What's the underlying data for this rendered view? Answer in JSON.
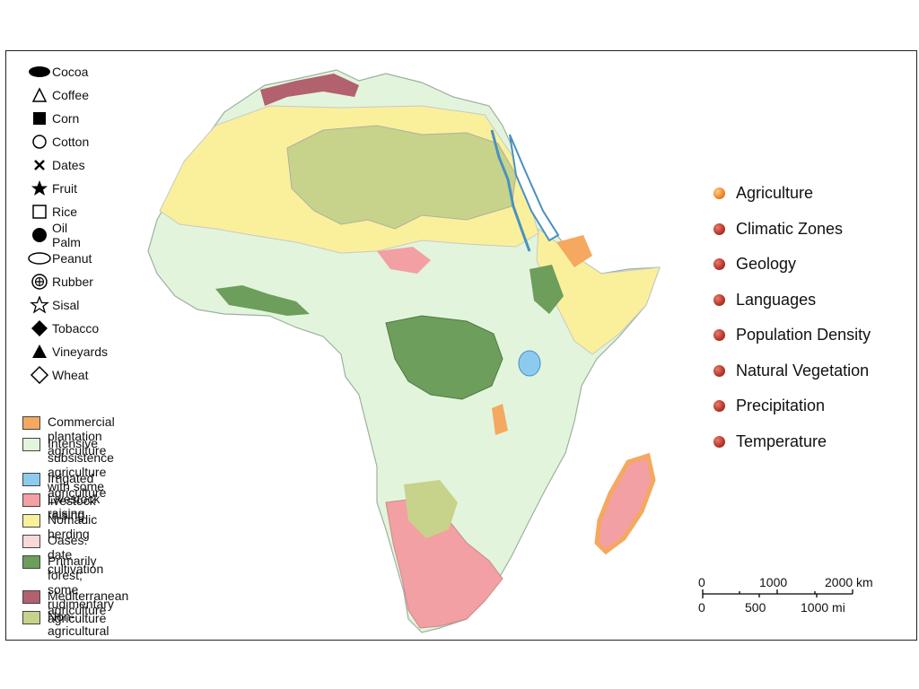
{
  "symbol_legend": [
    {
      "label": "Cocoa",
      "icon": "cocoa-icon"
    },
    {
      "label": "Coffee",
      "icon": "coffee-icon"
    },
    {
      "label": "Corn",
      "icon": "corn-icon"
    },
    {
      "label": "Cotton",
      "icon": "cotton-icon"
    },
    {
      "label": "Dates",
      "icon": "dates-icon"
    },
    {
      "label": "Fruit",
      "icon": "fruit-icon"
    },
    {
      "label": "Rice",
      "icon": "rice-icon"
    },
    {
      "label": "Oil Palm",
      "icon": "oil-palm-icon"
    },
    {
      "label": "Peanut",
      "icon": "peanut-icon"
    },
    {
      "label": "Rubber",
      "icon": "rubber-icon"
    },
    {
      "label": "Sisal",
      "icon": "sisal-icon"
    },
    {
      "label": "Tobacco",
      "icon": "tobacco-icon"
    },
    {
      "label": "Vineyards",
      "icon": "vineyards-icon"
    },
    {
      "label": "Wheat",
      "icon": "wheat-icon"
    }
  ],
  "land_use_legend": [
    {
      "label": "Commercial plantation agriculture",
      "color": "#f5a860"
    },
    {
      "label": "Intensive subsistence agriculture\nwith some livestock raising",
      "color": "#e2f5dc"
    },
    {
      "label": "Irrigated agriculture",
      "color": "#8ccbef"
    },
    {
      "label": "Livestock raising",
      "color": "#f2a0a3"
    },
    {
      "label": "Nomadic herding",
      "color": "#faf09c"
    },
    {
      "label": "Oases: date cultivation",
      "color": "#fbd8d8"
    },
    {
      "label": "Primarily forest; some\nrudimentary agriculture",
      "color": "#6d9e5c"
    },
    {
      "label": "Mediterranean agriculture",
      "color": "#b2616e"
    },
    {
      "label": "Non-agricultural",
      "color": "#c7d38a"
    }
  ],
  "nav_menu": [
    {
      "label": "Agriculture",
      "active": true
    },
    {
      "label": "Climatic Zones",
      "active": false
    },
    {
      "label": "Geology",
      "active": false
    },
    {
      "label": "Languages",
      "active": false
    },
    {
      "label": "Population Density",
      "active": false
    },
    {
      "label": "Natural Vegetation",
      "active": false
    },
    {
      "label": "Precipitation",
      "active": false
    },
    {
      "label": "Temperature",
      "active": false
    }
  ],
  "scale_bar": {
    "km_labels": [
      "0",
      "1000",
      "2000 km"
    ],
    "mi_labels": [
      "0",
      "500",
      "1000 mi"
    ]
  }
}
